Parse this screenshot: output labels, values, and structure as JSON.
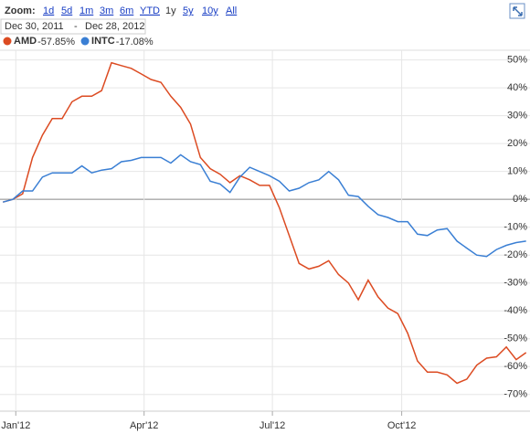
{
  "header": {
    "zoom_label": "Zoom:",
    "ranges": [
      "1d",
      "5d",
      "1m",
      "3m",
      "6m",
      "YTD",
      "1y",
      "5y",
      "10y",
      "All"
    ],
    "selected_range": "1y",
    "date_from": "Dec 30, 2011",
    "date_separator": "-",
    "date_to": "Dec 28, 2012"
  },
  "chart_data": {
    "type": "line",
    "x": [
      -1,
      0,
      1,
      2,
      3,
      4,
      5,
      6,
      7,
      8,
      9,
      10,
      11,
      12,
      13,
      14,
      15,
      16,
      17,
      18,
      19,
      20,
      21,
      22,
      23,
      24,
      25,
      26,
      27,
      28,
      29,
      30,
      31,
      32,
      33,
      34,
      35,
      36,
      37,
      38,
      39,
      40,
      41,
      42,
      43,
      44,
      45,
      46,
      47,
      48,
      49,
      50,
      51,
      52
    ],
    "series": [
      {
        "name": "AMD",
        "change": "-57.85%",
        "color": "#dc4b22",
        "values": [
          -1,
          0,
          2,
          15,
          23,
          29,
          29,
          35,
          37,
          37,
          39,
          49,
          48,
          47,
          45,
          43,
          42,
          37,
          33,
          27,
          15,
          11,
          9,
          6,
          8.5,
          7,
          5,
          5,
          -3,
          -13,
          -23,
          -25,
          -24,
          -22,
          -27,
          -30,
          -36,
          -29,
          -35,
          -39,
          -41,
          -48,
          -58,
          -62,
          -62,
          -63,
          -66,
          -64.5,
          -59.5,
          -57,
          -56.5,
          -53,
          -57.5,
          -55
        ]
      },
      {
        "name": "INTC",
        "change": "-17.08%",
        "color": "#3a7fd4",
        "values": [
          -1,
          0,
          3,
          3,
          8,
          9.5,
          9.5,
          9.5,
          12,
          9.5,
          10.5,
          11,
          13.5,
          14,
          15,
          15,
          15,
          13,
          16,
          13.5,
          12.5,
          6.5,
          5.5,
          2.5,
          8,
          11.5,
          10,
          8.5,
          6.5,
          3,
          4,
          6,
          7,
          10,
          7,
          1.5,
          1,
          -2.5,
          -5.5,
          -6.5,
          -8,
          -8,
          -12.5,
          -13,
          -11,
          -10.5,
          -15,
          -17.5,
          -20,
          -20.5,
          -18,
          -16.5,
          -15.5,
          -15
        ]
      }
    ],
    "xlim": [
      -1.3,
      52.4
    ],
    "xticks": [
      {
        "value": 0.3,
        "label": "Jan'12"
      },
      {
        "value": 13.3,
        "label": "Apr'12"
      },
      {
        "value": 26.3,
        "label": "Jul'12"
      },
      {
        "value": 39.4,
        "label": "Oct'12"
      }
    ],
    "ylim": [
      -76,
      53.5
    ],
    "yticks": [
      {
        "value": 50,
        "label": "50%"
      },
      {
        "value": 40,
        "label": "40%"
      },
      {
        "value": 30,
        "label": "30%"
      },
      {
        "value": 20,
        "label": "20%"
      },
      {
        "value": 10,
        "label": "10%"
      },
      {
        "value": 0,
        "label": "0%"
      },
      {
        "value": -10,
        "label": "-10%"
      },
      {
        "value": -20,
        "label": "-20%"
      },
      {
        "value": -30,
        "label": "-30%"
      },
      {
        "value": -40,
        "label": "-40%"
      },
      {
        "value": -50,
        "label": "-50%"
      },
      {
        "value": -60,
        "label": "-60%"
      },
      {
        "value": -70,
        "label": "-70%"
      }
    ],
    "grid": true
  }
}
